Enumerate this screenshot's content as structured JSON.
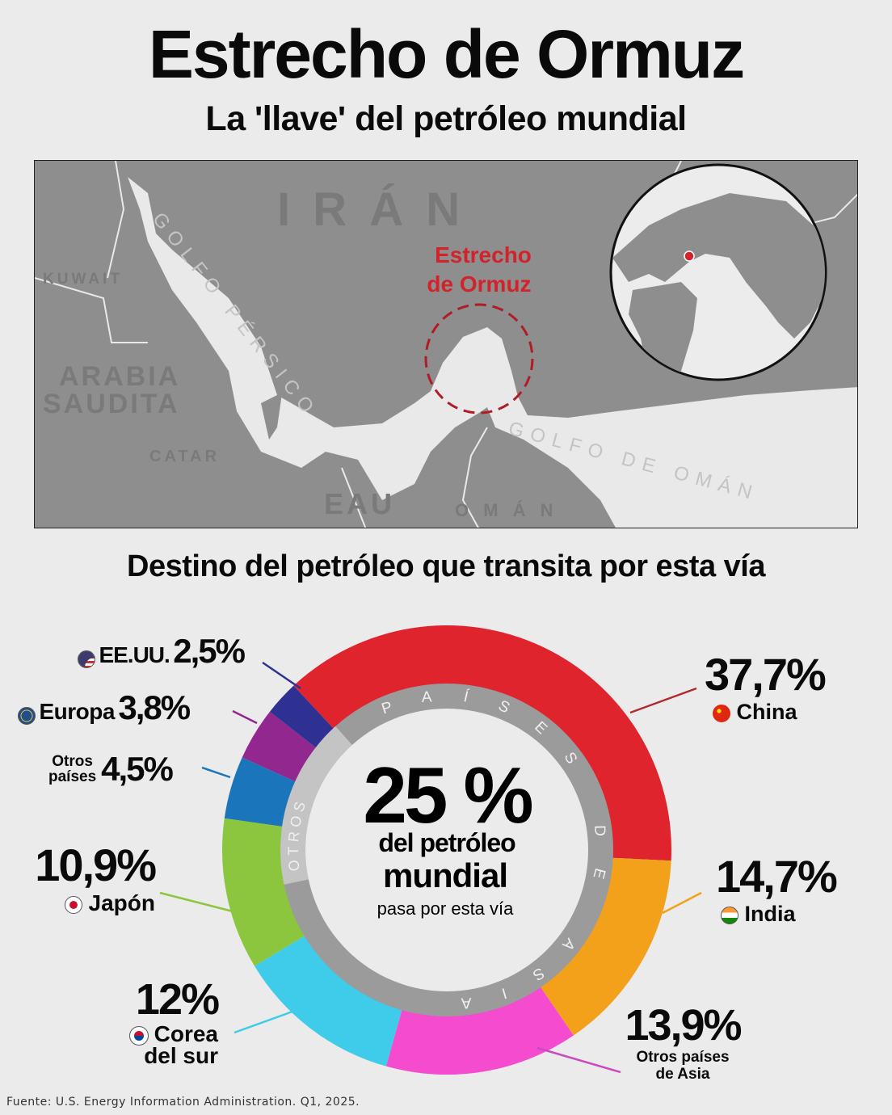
{
  "title": "Estrecho de Ormuz",
  "subtitle": "La 'llave' del petróleo mundial",
  "map": {
    "labels": {
      "iran": "I R Á N",
      "kuwait": "KUWAIT",
      "arabia_1": "ARABIA",
      "arabia_2": "SAUDITA",
      "catar": "CATAR",
      "eau": "EAU",
      "oman": "O M Á N",
      "golfo_persico": "GOLFO PÉRSICO",
      "golfo_oman": "GOLFO DE OMÁN",
      "strait_1": "Estrecho",
      "strait_2": "de Ormuz"
    },
    "colors": {
      "land": "#8e8e8e",
      "water": "#e9e9e9",
      "highlight": "#d2232a"
    }
  },
  "section_heading": "Destino del petróleo que transita por esta vía",
  "center": {
    "big": "25 %",
    "line1": "del petróleo",
    "line2": "mundial",
    "line3": "pasa por esta vía",
    "ring_asia": "PAÍSES DE ASIA",
    "ring_otros": "OTROS"
  },
  "chart_data": {
    "type": "pie",
    "donut": true,
    "categories": [
      "China",
      "India",
      "Otros países de Asia",
      "Corea del sur",
      "Japón",
      "Otros países",
      "Europa",
      "EE.UU."
    ],
    "values": [
      37.7,
      14.7,
      13.9,
      12,
      10.9,
      4.5,
      3.8,
      2.5
    ],
    "value_labels": [
      "37,7%",
      "14,7%",
      "13,9%",
      "12%",
      "10,9%",
      "4,5%",
      "3,8%",
      "2,5%"
    ],
    "colors": [
      "#e0242e",
      "#f3a01b",
      "#f44bcf",
      "#3fcbea",
      "#8cc63f",
      "#1b75bb",
      "#92278f",
      "#2e3192"
    ],
    "unit": "%"
  },
  "legend": {
    "china": "China",
    "india": "India",
    "otros_asia_1": "Otros países",
    "otros_asia_2": "de Asia",
    "corea_1": "Corea",
    "corea_2": "del sur",
    "japon": "Japón",
    "otros_1": "Otros",
    "otros_2": "países",
    "europa": "Europa",
    "eeuu": "EE.UU."
  },
  "footer": "Fuente: U.S. Energy Information Administration. Q1, 2025."
}
